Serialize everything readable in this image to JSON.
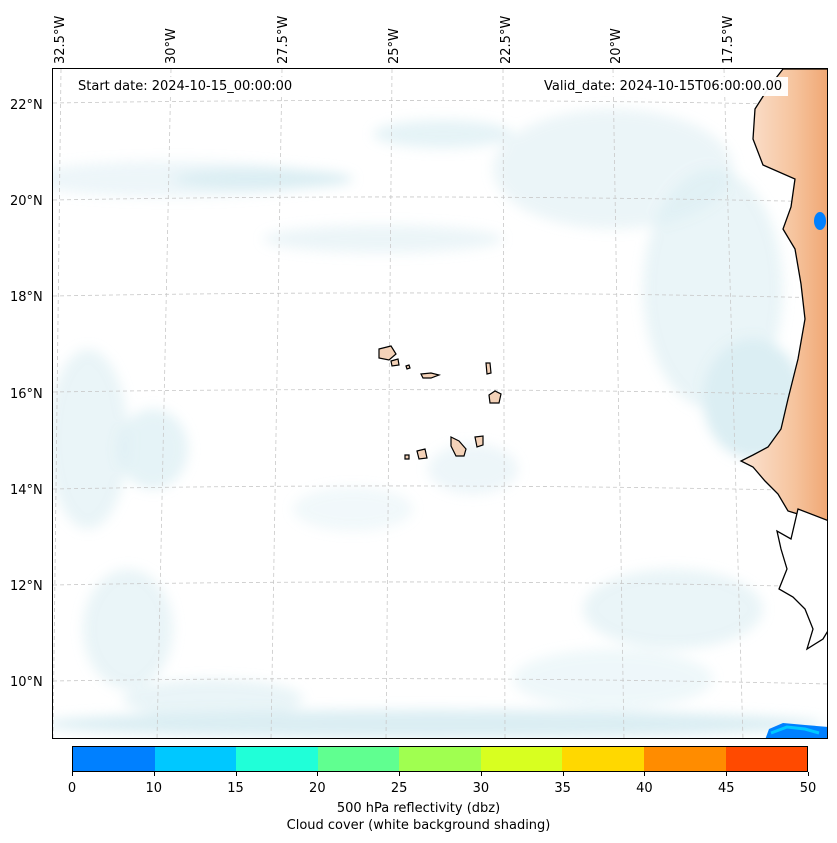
{
  "map": {
    "lon_labels": [
      "32.5°W",
      "30°W",
      "27.5°W",
      "25°W",
      "22.5°W",
      "20°W",
      "17.5°W"
    ],
    "lat_labels": [
      "22°N",
      "20°N",
      "18°N",
      "16°N",
      "14°N",
      "12°N",
      "10°N"
    ],
    "start_date": "Start date: 2024-10-15_00:00:00",
    "valid_date": "Valid_date: 2024-10-15T06:00:00.00",
    "colors": {
      "cloud": "#d6ecf2",
      "land_warm": "#f6b98a",
      "coastline": "#000000",
      "grid": "#c8c8c8"
    }
  },
  "colorbar": {
    "ticks": [
      "0",
      "10",
      "15",
      "20",
      "25",
      "30",
      "35",
      "40",
      "45",
      "50"
    ],
    "colors": [
      "#0080ff",
      "#00c8ff",
      "#20ffd8",
      "#60ff90",
      "#a0ff50",
      "#d8ff20",
      "#ffd800",
      "#ff8c00",
      "#ff4a00"
    ],
    "label_line1": "500 hPa reflectivity (dbz)",
    "label_line2": "Cloud cover (white background shading)"
  }
}
